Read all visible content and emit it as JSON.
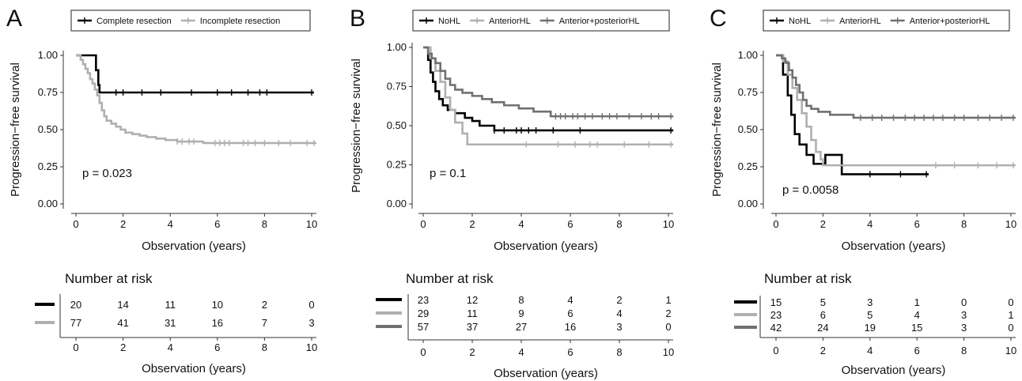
{
  "colors": {
    "NoHL": "#000000",
    "Complete resection": "#000000",
    "Incomplete resection": "#b0b0b0",
    "AnteriorHL": "#b0b0b0",
    "Anterior+posteriorHL": "#707070"
  },
  "chart_data": [
    {
      "panel": "A",
      "type": "line",
      "step": true,
      "ylabel": "Progression−free survival",
      "xlabel": "Observation (years)",
      "xlim": [
        0,
        10
      ],
      "ylim": [
        0,
        1
      ],
      "xticks": [
        "0",
        "2",
        "4",
        "6",
        "8",
        "10"
      ],
      "yticks": [
        "0.00",
        "0.25",
        "0.50",
        "0.75",
        "1.00"
      ],
      "grid": false,
      "legend": "top-center",
      "pvalue": "p = 0.023",
      "series": [
        {
          "name": "Complete resection",
          "x": [
            0,
            0.85,
            0.95,
            1.0,
            10.1
          ],
          "y": [
            1.0,
            0.9,
            0.8,
            0.75,
            0.75
          ],
          "censor_x": [
            1.7,
            2.0,
            2.8,
            3.6,
            4.9,
            6.0,
            6.6,
            7.3,
            7.8,
            8.1,
            10.0
          ]
        },
        {
          "name": "Incomplete resection",
          "x": [
            0,
            0.2,
            0.3,
            0.4,
            0.5,
            0.6,
            0.7,
            0.8,
            0.9,
            1.0,
            1.1,
            1.2,
            1.3,
            1.5,
            1.7,
            1.9,
            2.1,
            2.4,
            2.7,
            3.0,
            3.4,
            3.8,
            4.3,
            5.4,
            10.2
          ],
          "y": [
            1.0,
            0.97,
            0.94,
            0.91,
            0.88,
            0.84,
            0.81,
            0.77,
            0.73,
            0.68,
            0.63,
            0.59,
            0.56,
            0.54,
            0.52,
            0.5,
            0.48,
            0.47,
            0.46,
            0.45,
            0.44,
            0.43,
            0.42,
            0.41,
            0.41
          ],
          "censor_x": [
            4.3,
            4.5,
            4.8,
            5.0,
            5.9,
            6.1,
            6.3,
            6.5,
            7.1,
            7.3,
            7.6,
            8.0,
            8.6,
            9.1,
            9.8,
            10.1
          ]
        }
      ],
      "risk_table": {
        "title": "Number at risk",
        "xlabel": "Observation (years)",
        "rows": [
          {
            "group": "Complete resection",
            "values": [
              "20",
              "14",
              "11",
              "10",
              "2",
              "0"
            ]
          },
          {
            "group": "Incomplete resection",
            "values": [
              "77",
              "41",
              "31",
              "16",
              "7",
              "3"
            ]
          }
        ]
      }
    },
    {
      "panel": "B",
      "type": "line",
      "step": true,
      "ylabel": "Progression−free survival",
      "xlabel": "Observation (years)",
      "xlim": [
        0,
        10
      ],
      "ylim": [
        0,
        1
      ],
      "xticks": [
        "0",
        "2",
        "4",
        "6",
        "8",
        "10"
      ],
      "yticks": [
        "0.00",
        "0.25",
        "0.50",
        "0.75",
        "1.00"
      ],
      "grid": false,
      "legend": "top-center",
      "pvalue": "p = 0.1",
      "series": [
        {
          "name": "NoHL",
          "x": [
            0,
            0.2,
            0.3,
            0.4,
            0.5,
            0.65,
            0.8,
            1.0,
            1.3,
            1.7,
            2.0,
            2.3,
            2.9,
            10.2
          ],
          "y": [
            1.0,
            0.92,
            0.84,
            0.78,
            0.72,
            0.67,
            0.63,
            0.6,
            0.58,
            0.55,
            0.53,
            0.5,
            0.47,
            0.47
          ],
          "censor_x": [
            2.9,
            3.3,
            3.8,
            4.0,
            4.3,
            4.6,
            5.3,
            6.4,
            10.1
          ]
        },
        {
          "name": "AnteriorHL",
          "x": [
            0,
            0.3,
            0.5,
            0.7,
            0.9,
            1.1,
            1.3,
            1.6,
            1.8,
            10.2
          ],
          "y": [
            1.0,
            0.93,
            0.85,
            0.78,
            0.68,
            0.6,
            0.52,
            0.45,
            0.38,
            0.38
          ],
          "censor_x": [
            4.2,
            5.5,
            6.2,
            6.8,
            7.1,
            8.2,
            9.2,
            10.1
          ]
        },
        {
          "name": "Anterior+posteriorHL",
          "x": [
            0,
            0.2,
            0.35,
            0.5,
            0.7,
            0.9,
            1.1,
            1.3,
            1.6,
            2.0,
            2.4,
            2.8,
            3.3,
            3.9,
            4.5,
            5.2,
            10.2
          ],
          "y": [
            1.0,
            0.96,
            0.93,
            0.9,
            0.85,
            0.8,
            0.76,
            0.73,
            0.71,
            0.69,
            0.67,
            0.65,
            0.63,
            0.61,
            0.59,
            0.56,
            0.56
          ],
          "censor_x": [
            5.4,
            5.6,
            5.8,
            6.1,
            6.3,
            6.6,
            6.9,
            7.3,
            7.6,
            7.9,
            8.4,
            8.9,
            9.3,
            9.6,
            10.1
          ]
        }
      ],
      "risk_table": {
        "title": "Number at risk",
        "xlabel": "Observation (years)",
        "rows": [
          {
            "group": "NoHL",
            "values": [
              "23",
              "12",
              "8",
              "4",
              "2",
              "1"
            ]
          },
          {
            "group": "AnteriorHL",
            "values": [
              "29",
              "11",
              "9",
              "6",
              "4",
              "2"
            ]
          },
          {
            "group": "Anterior+posteriorHL",
            "values": [
              "57",
              "37",
              "27",
              "16",
              "3",
              "0"
            ]
          }
        ]
      }
    },
    {
      "panel": "C",
      "type": "line",
      "step": true,
      "ylabel": "Progression−free survival",
      "xlabel": "Observation (years)",
      "xlim": [
        0,
        10
      ],
      "ylim": [
        0,
        1
      ],
      "xticks": [
        "0",
        "2",
        "4",
        "6",
        "8",
        "10"
      ],
      "yticks": [
        "0.00",
        "0.25",
        "0.50",
        "0.75",
        "1.00"
      ],
      "grid": false,
      "legend": "top-center",
      "pvalue": "p = 0.0058",
      "series": [
        {
          "name": "NoHL",
          "x": [
            0,
            0.3,
            0.5,
            0.65,
            0.8,
            1.0,
            1.3,
            1.6,
            2.1,
            2.8,
            6.5
          ],
          "y": [
            1.0,
            0.87,
            0.73,
            0.6,
            0.47,
            0.4,
            0.33,
            0.27,
            0.33,
            0.2,
            0.2
          ],
          "censor_x": [
            4.0,
            5.3,
            6.4
          ]
        },
        {
          "name": "AnteriorHL",
          "x": [
            0,
            0.3,
            0.5,
            0.7,
            0.9,
            1.1,
            1.3,
            1.5,
            1.7,
            1.9,
            2.0,
            10.2
          ],
          "y": [
            1.0,
            0.96,
            0.87,
            0.78,
            0.7,
            0.61,
            0.52,
            0.43,
            0.35,
            0.3,
            0.26,
            0.26
          ],
          "censor_x": [
            6.8,
            7.6,
            8.6,
            9.4,
            10.1
          ]
        },
        {
          "name": "Anterior+posteriorHL",
          "x": [
            0,
            0.25,
            0.4,
            0.55,
            0.7,
            0.85,
            1.0,
            1.15,
            1.3,
            1.5,
            1.8,
            2.3,
            3.3,
            10.2
          ],
          "y": [
            1.0,
            0.98,
            0.95,
            0.9,
            0.85,
            0.8,
            0.75,
            0.7,
            0.66,
            0.64,
            0.62,
            0.6,
            0.58,
            0.58
          ],
          "censor_x": [
            3.6,
            4.1,
            4.5,
            5.0,
            5.5,
            5.9,
            6.3,
            6.7,
            7.1,
            7.6,
            8.0,
            8.6,
            9.1,
            9.6,
            10.1
          ]
        }
      ],
      "risk_table": {
        "title": "Number at risk",
        "xlabel": "Observation (years)",
        "rows": [
          {
            "group": "NoHL",
            "values": [
              "15",
              "5",
              "3",
              "1",
              "0",
              "0"
            ]
          },
          {
            "group": "AnteriorHL",
            "values": [
              "23",
              "6",
              "5",
              "4",
              "3",
              "1"
            ]
          },
          {
            "group": "Anterior+posteriorHL",
            "values": [
              "42",
              "24",
              "19",
              "15",
              "3",
              "0"
            ]
          }
        ]
      }
    }
  ]
}
